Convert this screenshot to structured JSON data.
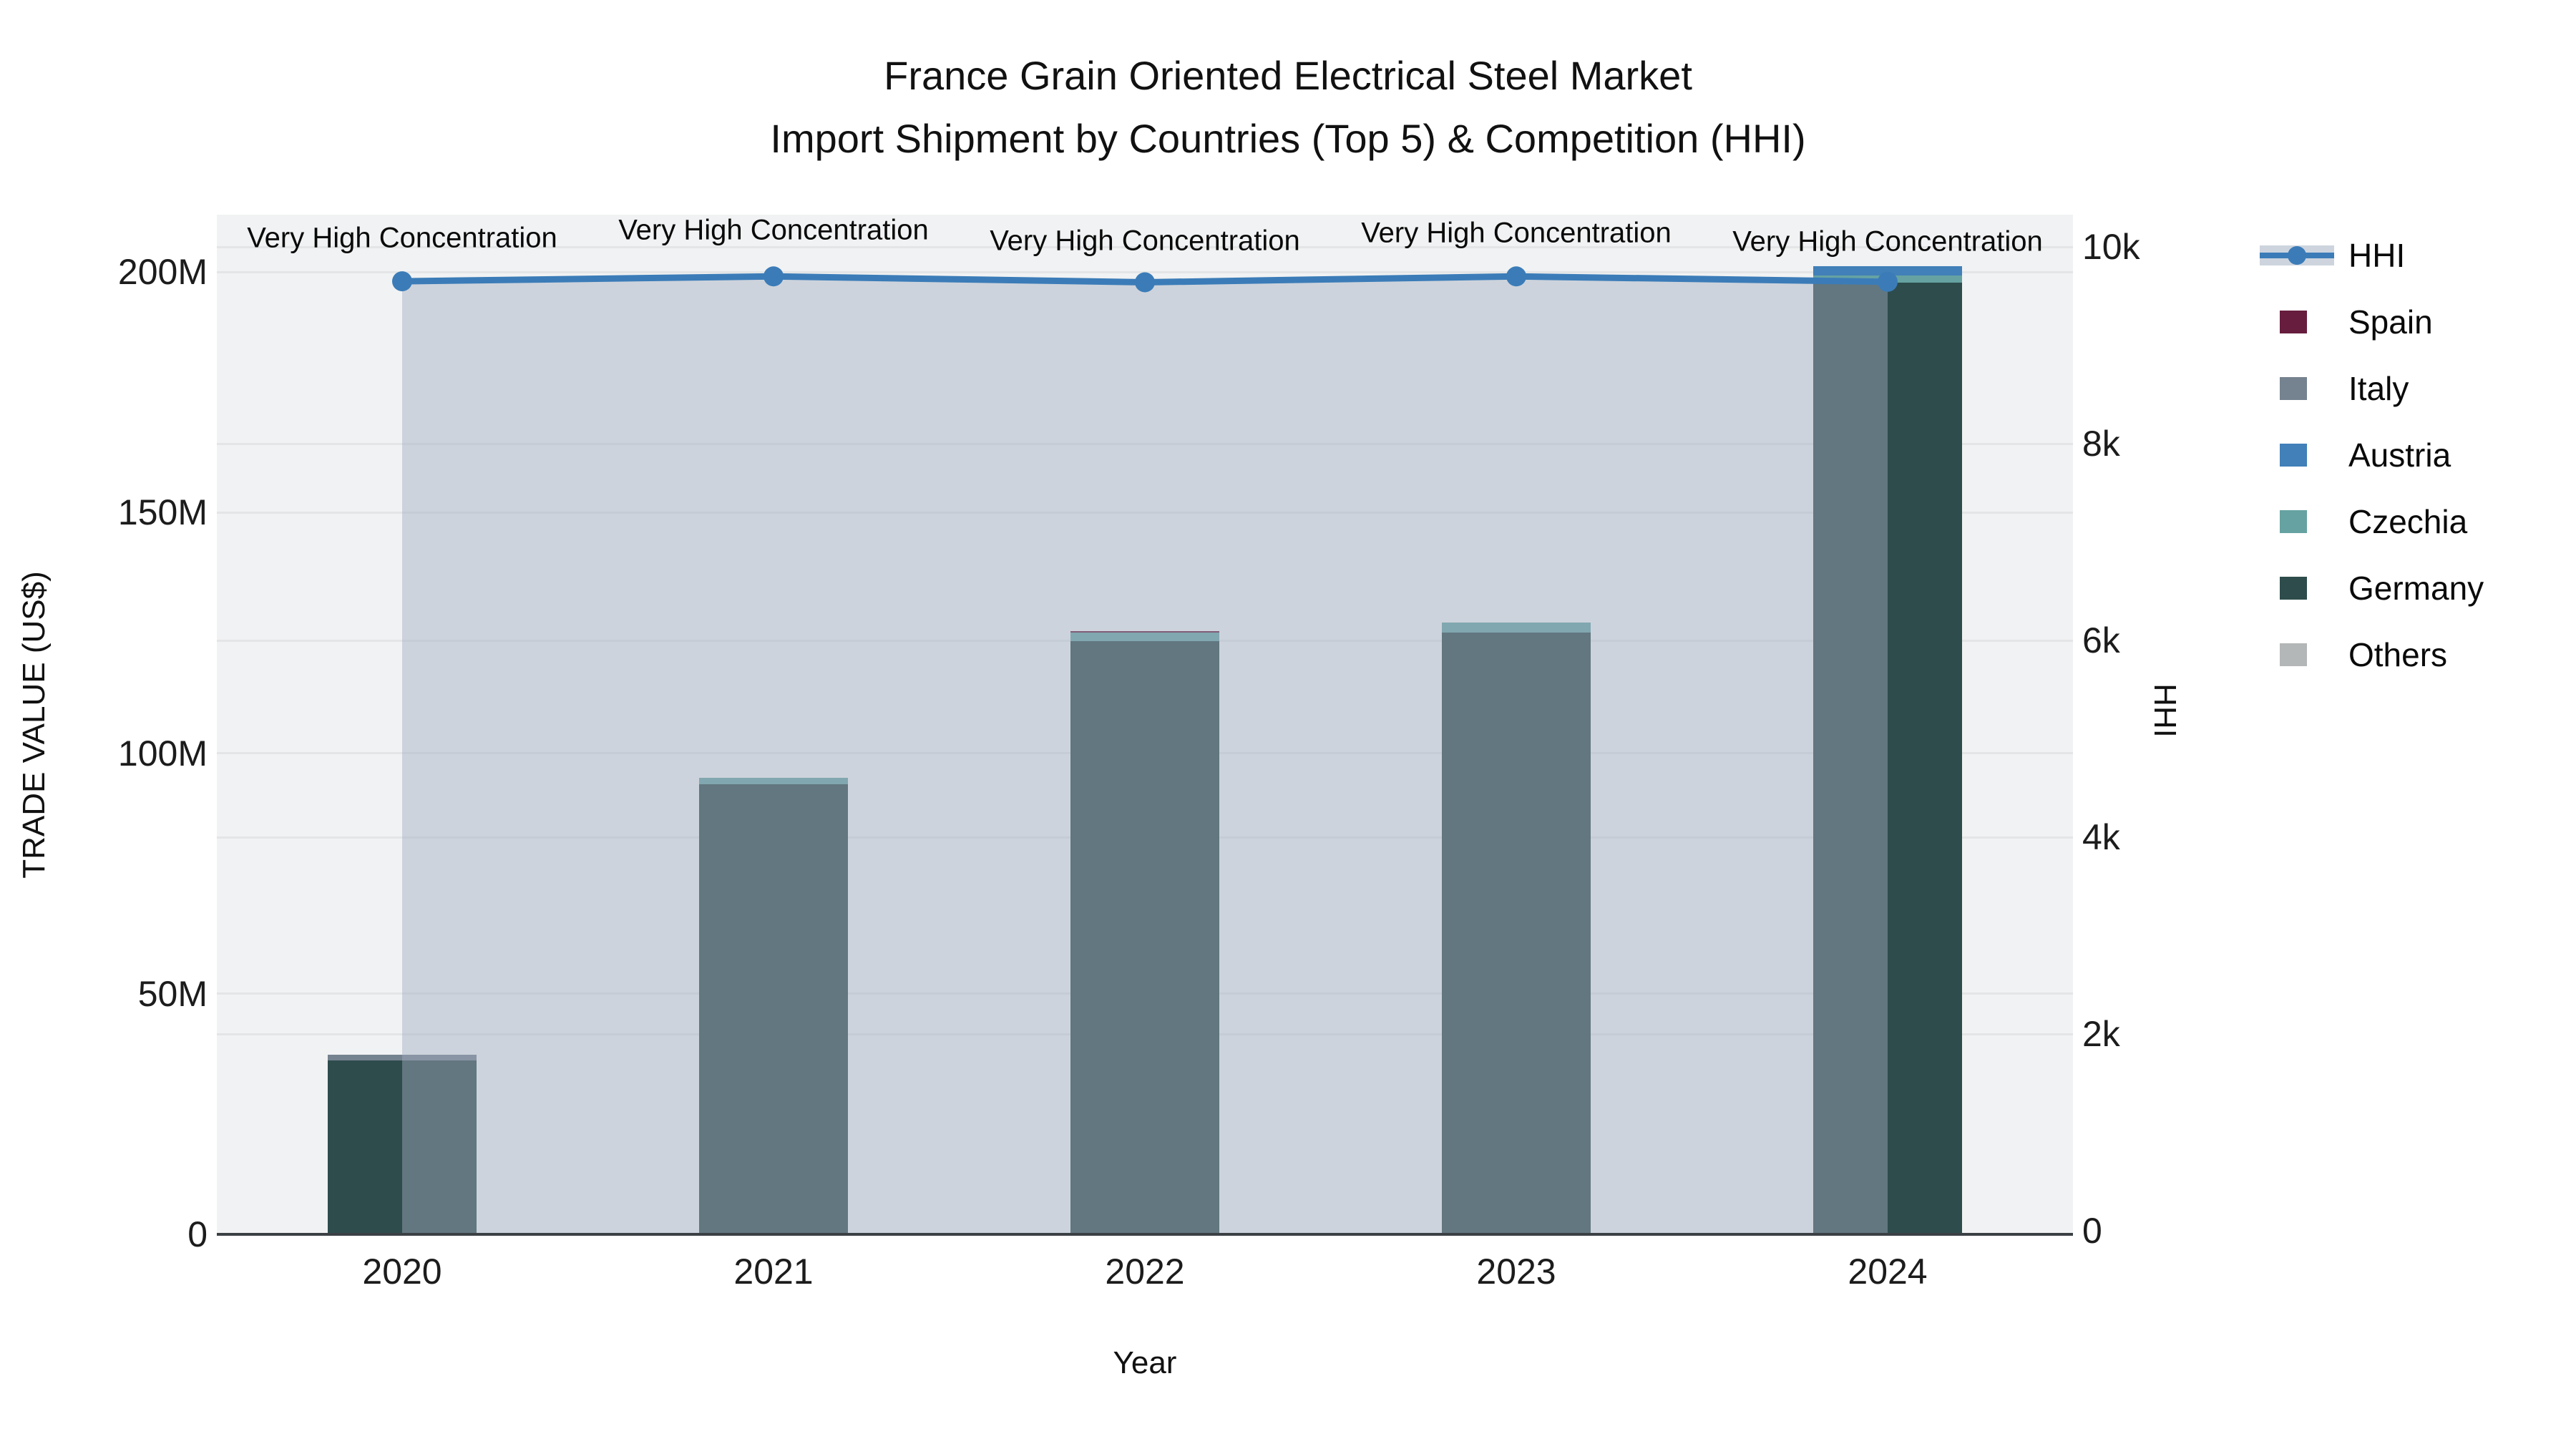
{
  "title": {
    "line1": "France Grain Oriented Electrical Steel Market",
    "line2": "Import Shipment by Countries (Top 5) & Competition (HHI)"
  },
  "axes": {
    "x": {
      "title": "Year",
      "tick_labels": [
        "2020",
        "2021",
        "2022",
        "2023",
        "2024"
      ]
    },
    "y_left": {
      "title": "TRADE VALUE (US$)",
      "tick_labels": [
        "0",
        "50M",
        "100M",
        "150M",
        "200M"
      ],
      "tick_values_millions": [
        0,
        50,
        100,
        150,
        200
      ]
    },
    "y_right": {
      "title": "HHI",
      "tick_labels": [
        "0",
        "2k",
        "4k",
        "6k",
        "8k",
        "10k"
      ],
      "tick_values": [
        0,
        2000,
        4000,
        6000,
        8000,
        10000
      ]
    }
  },
  "legend": {
    "items": [
      {
        "label": "HHI",
        "kind": "line",
        "color": "#3b7cb8"
      },
      {
        "label": "Spain",
        "kind": "swatch",
        "color": "#671d3d"
      },
      {
        "label": "Italy",
        "kind": "swatch",
        "color": "#75828f"
      },
      {
        "label": "Austria",
        "kind": "swatch",
        "color": "#4180b8"
      },
      {
        "label": "Czechia",
        "kind": "swatch",
        "color": "#66a2a2"
      },
      {
        "label": "Germany",
        "kind": "swatch",
        "color": "#2e4c4c"
      },
      {
        "label": "Others",
        "kind": "swatch",
        "color": "#b4b7b7"
      }
    ]
  },
  "annotations": [
    {
      "year": "2020",
      "text": "Very High Concentration"
    },
    {
      "year": "2021",
      "text": "Very High Concentration"
    },
    {
      "year": "2022",
      "text": "Very High Concentration"
    },
    {
      "year": "2023",
      "text": "Very High Concentration"
    },
    {
      "year": "2024",
      "text": "Very High Concentration"
    }
  ],
  "chart_data": [
    {
      "type": "bar",
      "stacked": true,
      "unit": "million US$",
      "categories": [
        "2020",
        "2021",
        "2022",
        "2023",
        "2024"
      ],
      "stack_order_bottom_to_top": [
        "Germany",
        "Czechia",
        "Austria",
        "Italy",
        "Spain",
        "Others"
      ],
      "series": [
        {
          "name": "Spain",
          "color": "#671d3d",
          "values": [
            0,
            0,
            0.4,
            0,
            0
          ]
        },
        {
          "name": "Italy",
          "color": "#75828f",
          "values": [
            1.1,
            0,
            0,
            0,
            0
          ]
        },
        {
          "name": "Austria",
          "color": "#4180b8",
          "values": [
            0,
            0,
            0,
            0,
            2.0
          ]
        },
        {
          "name": "Czechia",
          "color": "#66a2a2",
          "values": [
            0,
            1.2,
            1.8,
            2.1,
            1.5
          ]
        },
        {
          "name": "Germany",
          "color": "#2e4c4c",
          "values": [
            36.2,
            93.6,
            123.2,
            125.0,
            197.7
          ]
        },
        {
          "name": "Others",
          "color": "#b4b7b7",
          "values": [
            0,
            0,
            0,
            0,
            0
          ]
        }
      ],
      "totals_millions": [
        37.3,
        94.8,
        125.4,
        127.1,
        201.2
      ],
      "title": "France Grain Oriented Electrical Steel Market — Import Shipment by Countries (Top 5) & Competition (HHI)",
      "xlabel": "Year",
      "ylabel": "TRADE VALUE (US$)",
      "ylim_millions": [
        0,
        212
      ],
      "grid": true
    },
    {
      "type": "line",
      "name": "HHI",
      "axis": "right",
      "color": "#3b7cb8",
      "area_fill": "rgba(161,173,192,0.45)",
      "x": [
        "2020",
        "2021",
        "2022",
        "2023",
        "2024"
      ],
      "values": [
        9650,
        9700,
        9640,
        9700,
        9645
      ],
      "ylabel": "HHI",
      "ylim": [
        0,
        10000
      ],
      "markers": true,
      "point_annotations": [
        "Very High Concentration",
        "Very High Concentration",
        "Very High Concentration",
        "Very High Concentration",
        "Very High Concentration"
      ]
    }
  ],
  "colors": {
    "hhi_line": "#3b7cb8",
    "hhi_area_over_bg": "#cdd3dc",
    "plot_background": "#f1f2f3",
    "gridline": "#e3e5e6",
    "x_axis_line": "#3b4045",
    "text": "#000000"
  }
}
